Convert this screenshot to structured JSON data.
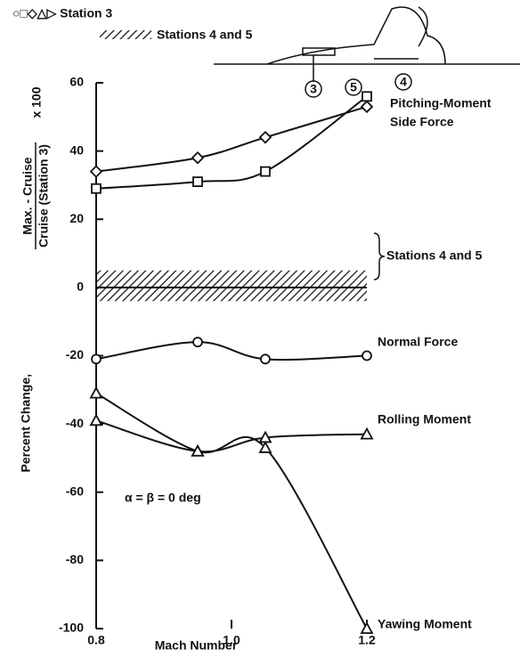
{
  "chart_data": {
    "type": "line",
    "legend": [
      "○□◇△▷ Station 3",
      "Stations 4 and 5"
    ],
    "x_label": "Mach Number",
    "y_label": "Percent Change,",
    "y_label_fraction": [
      "Max. - Cruise",
      "Cruise (Station 3)",
      "x 100"
    ],
    "xlim": [
      0.8,
      1.2
    ],
    "xticks": [
      0.8,
      {
        "value": 1.0,
        "label": "1.0"
      },
      1.2
    ],
    "ylim": [
      -100,
      60
    ],
    "yticks": [
      -100,
      -80,
      -60,
      -40,
      -20,
      0,
      20,
      40,
      60
    ],
    "x": [
      0.8,
      0.95,
      1.05,
      1.2
    ],
    "series": [
      {
        "name": "Pitching-Moment",
        "marker": "diamond",
        "color": "#111",
        "values": [
          34,
          38,
          44,
          53
        ]
      },
      {
        "name": "Side Force",
        "marker": "square",
        "color": "#111",
        "values": [
          29,
          31,
          34,
          56
        ]
      },
      {
        "name": "Normal Force",
        "marker": "circle",
        "color": "#111",
        "values": [
          -21,
          -16,
          -21,
          -20
        ]
      },
      {
        "name": "Rolling Moment",
        "marker": "triangle",
        "color": "#111",
        "values": [
          -39,
          -48,
          -44,
          -43
        ]
      },
      {
        "name": "Yawing Moment",
        "marker": "triangle",
        "color": "#111",
        "values": [
          -31,
          -48,
          -47,
          -100
        ]
      }
    ],
    "band": {
      "name": "Stations 4 and 5",
      "low": -4,
      "high": 5,
      "center": 0
    },
    "annotation": "α = β = 0 deg",
    "station_labels": [
      "3",
      "5",
      "4"
    ]
  }
}
